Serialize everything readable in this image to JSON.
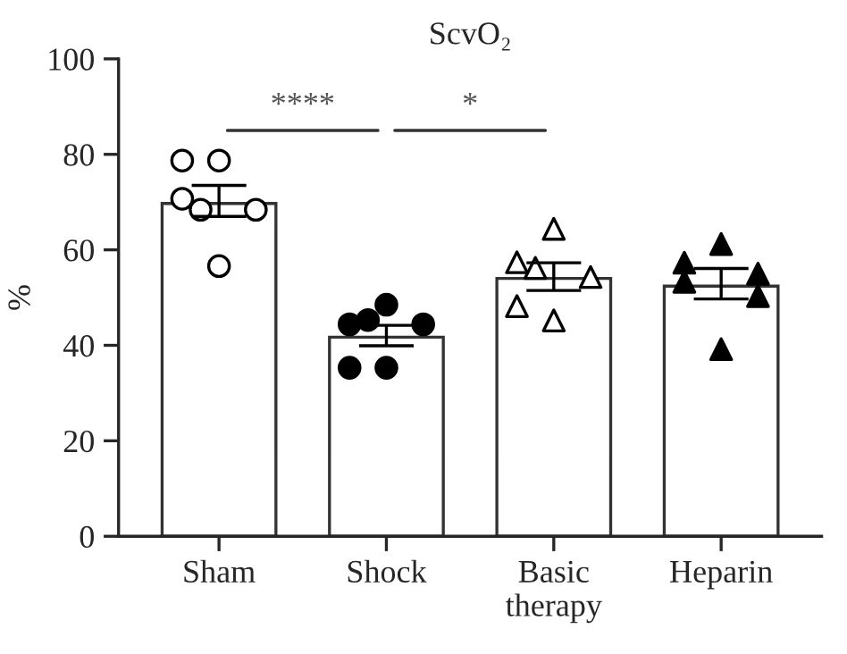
{
  "chart_data": {
    "type": "bar",
    "title": "ScvO₂",
    "ylabel": "%",
    "categories": [
      "Sham",
      "Shock",
      "Basic\ntherapy",
      "Heparin"
    ],
    "values": [
      69.7,
      41.7,
      54.0,
      52.4
    ],
    "color": "#ffffff",
    "errors": [
      [
        67.0,
        73.5
      ],
      [
        39.9,
        44.2
      ],
      [
        51.5,
        57.3
      ],
      [
        49.7,
        56.1
      ]
    ],
    "series": [
      {
        "type": "scatter",
        "marker": "circle",
        "color": "#ffffff",
        "x": [
          "Sham",
          "Sham",
          "Sham",
          "Sham",
          "Sham",
          "Sham"
        ],
        "values": [
          78.7,
          78.7,
          70.7,
          68.4,
          68.4,
          56.6
        ]
      },
      {
        "type": "scatter",
        "marker": "circle",
        "color": "#000000",
        "x": [
          "Shock",
          "Shock",
          "Shock",
          "Shock",
          "Shock",
          "Shock"
        ],
        "values": [
          48.5,
          44.4,
          44.4,
          45.3,
          35.3,
          35.3
        ]
      },
      {
        "type": "scatter",
        "marker": "triangle",
        "color": "#ffffff",
        "x": [
          "Basic\ntherapy",
          "Basic\ntherapy",
          "Basic\ntherapy",
          "Basic\ntherapy",
          "Basic\ntherapy",
          "Basic\ntherapy"
        ],
        "values": [
          64.4,
          57.4,
          54.3,
          56.2,
          48.2,
          45.2
        ]
      },
      {
        "type": "scatter",
        "marker": "triangle",
        "color": "#000000",
        "x": [
          "Heparin",
          "Heparin",
          "Heparin",
          "Heparin",
          "Heparin",
          "Heparin"
        ],
        "values": [
          61.2,
          57.3,
          55.0,
          53.3,
          50.3,
          39.2
        ]
      }
    ],
    "annotations": [
      "****",
      "*"
    ],
    "ylim": [
      0,
      100
    ],
    "yticks": [
      0,
      20,
      40,
      60,
      80,
      100
    ],
    "grid": false,
    "legend": false
  }
}
